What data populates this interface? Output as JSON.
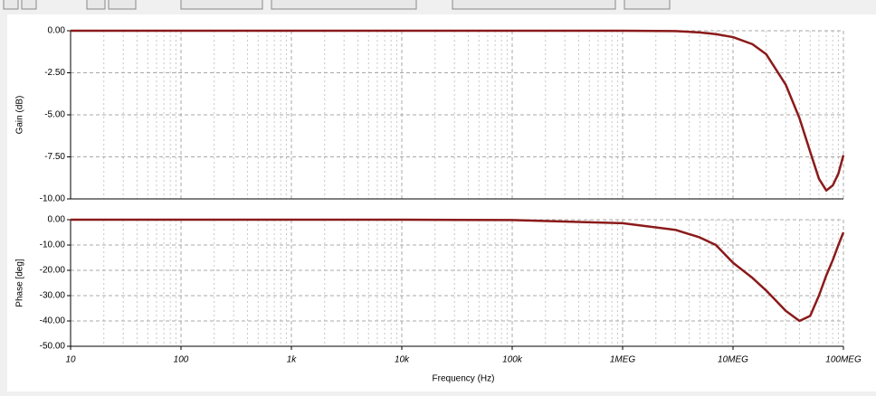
{
  "chart_data": [
    {
      "type": "line",
      "ylabel": "Gain (dB)",
      "xscale": "log",
      "grid": true,
      "color": "#8b1a1a",
      "x": [
        10,
        100,
        1000,
        10000,
        100000,
        1000000,
        3000000,
        5000000,
        7000000,
        10000000,
        15000000,
        20000000,
        30000000,
        40000000,
        50000000,
        60000000,
        70000000,
        80000000,
        90000000,
        100000000
      ],
      "values": [
        0,
        0,
        0,
        0,
        0,
        0,
        -0.02,
        -0.1,
        -0.2,
        -0.38,
        -0.8,
        -1.4,
        -3.2,
        -5.2,
        -7.2,
        -8.8,
        -9.5,
        -9.2,
        -8.5,
        -7.4
      ],
      "xlim": [
        10,
        100000000
      ],
      "ylim": [
        -10,
        0
      ],
      "yticks": [
        {
          "value": 0,
          "label": "0.00"
        },
        {
          "value": -2.5,
          "label": "-2.50"
        },
        {
          "value": -5,
          "label": "-5.00"
        },
        {
          "value": -7.5,
          "label": "-7.50"
        },
        {
          "value": -10,
          "label": "-10.00"
        }
      ]
    },
    {
      "type": "line",
      "ylabel": "Phase [deg]",
      "xlabel": "Frequency (Hz)",
      "xscale": "log",
      "grid": true,
      "color": "#8b1a1a",
      "x": [
        10,
        100,
        1000,
        10000,
        100000,
        1000000,
        3000000,
        5000000,
        7000000,
        10000000,
        15000000,
        20000000,
        30000000,
        40000000,
        50000000,
        60000000,
        70000000,
        80000000,
        90000000,
        100000000
      ],
      "values": [
        0,
        0,
        0,
        -0.02,
        -0.15,
        -1.4,
        -4,
        -7,
        -10,
        -17,
        -23,
        -28,
        -36,
        -40,
        -38,
        -30,
        -22,
        -16,
        -10,
        -5
      ],
      "xlim": [
        10,
        100000000
      ],
      "ylim": [
        -50,
        0
      ],
      "xticks": [
        10,
        100,
        {
          "value": 1000,
          "label": "1k"
        },
        {
          "value": 10000,
          "label": "10k"
        },
        {
          "value": 100000,
          "label": "100k"
        },
        {
          "value": 1000000,
          "label": "1MEG"
        },
        {
          "value": 10000000,
          "label": "10MEG"
        },
        {
          "value": 100000000,
          "label": "100MEG"
        }
      ],
      "yticks": [
        {
          "value": 0,
          "label": "0.00"
        },
        {
          "value": -10,
          "label": "-10.00"
        },
        {
          "value": -20,
          "label": "-20.00"
        },
        {
          "value": -30,
          "label": "-30.00"
        },
        {
          "value": -40,
          "label": "-40.00"
        },
        {
          "value": -50,
          "label": "-50.00"
        }
      ]
    }
  ]
}
